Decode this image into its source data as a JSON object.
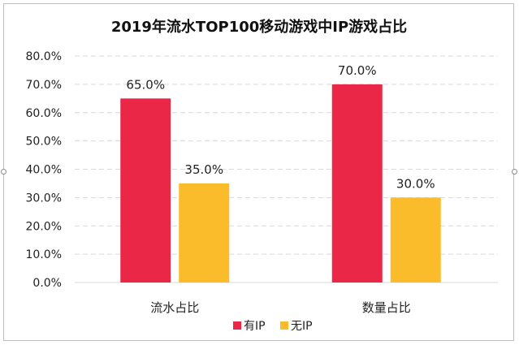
{
  "chart_data": {
    "type": "bar",
    "title": "2019年流水TOP100移动游戏中IP游戏占比",
    "xlabel": "",
    "ylabel": "",
    "categories": [
      "流水占比",
      "数量占比"
    ],
    "series": [
      {
        "name": "有IP",
        "values": [
          65.0,
          70.0
        ],
        "color": "#ea2746"
      },
      {
        "name": "无IP",
        "values": [
          35.0,
          30.0
        ],
        "color": "#fbbc2c"
      }
    ],
    "ylim": [
      0,
      80
    ],
    "yticks": [
      "0.0%",
      "10.0%",
      "20.0%",
      "30.0%",
      "40.0%",
      "50.0%",
      "60.0%",
      "70.0%",
      "80.0%"
    ],
    "data_labels": [
      [
        "65.0%",
        "70.0%"
      ],
      [
        "35.0%",
        "30.0%"
      ]
    ],
    "grid": true,
    "legend": "bottom"
  }
}
